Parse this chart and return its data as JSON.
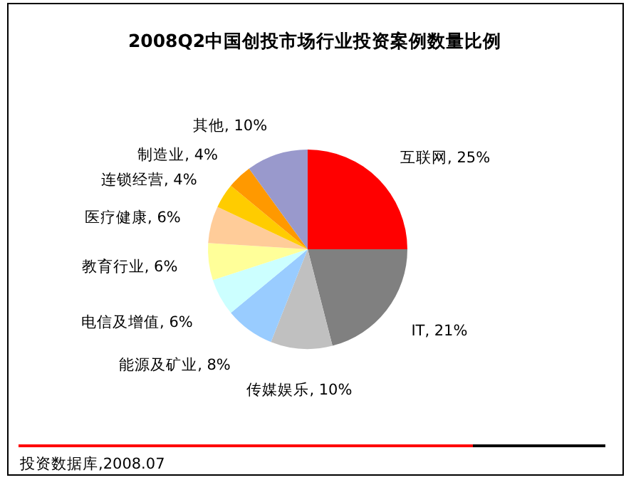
{
  "chart_data": {
    "type": "pie",
    "title": "2008Q2中国创投市场行业投资案例数量比例",
    "categories": [
      "互联网",
      "IT",
      "传媒娱乐",
      "能源及矿业",
      "电信及增值",
      "教育行业",
      "医疗健康",
      "连锁经营",
      "制造业",
      "其他"
    ],
    "values": [
      25,
      21,
      10,
      8,
      6,
      6,
      6,
      4,
      4,
      10
    ],
    "value_labels": [
      "25%",
      "21%",
      "10%",
      "8%",
      "6%",
      "6%",
      "6%",
      "4%",
      "4%",
      "10%"
    ],
    "colors": [
      "#ff0000",
      "#808080",
      "#c0c0c0",
      "#99ccff",
      "#ccffff",
      "#ffff99",
      "#ffcc99",
      "#ffcc00",
      "#ff9900",
      "#9999cc"
    ],
    "annotations": [
      "投资数据库,2008.07"
    ]
  }
}
